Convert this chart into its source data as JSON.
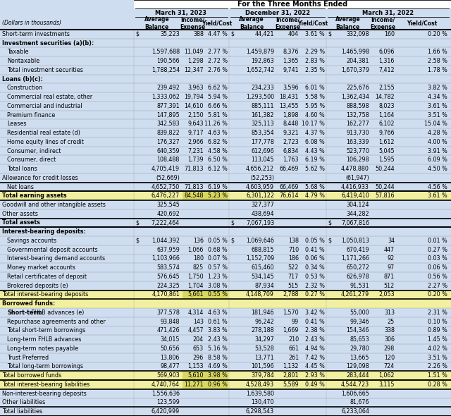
{
  "title": "For the Three Months Ended",
  "rows": [
    {
      "label": "Short-term investments",
      "indent": 0,
      "bold": false,
      "style": "normal",
      "dollar_avg": true,
      "d1": [
        "35,223",
        "388",
        "4.47 %"
      ],
      "d2": [
        "44,421",
        "404",
        "3.61 %"
      ],
      "d3": [
        "332,098",
        "160",
        "0.20 %"
      ]
    },
    {
      "label": "Investment securities (a)(b):",
      "indent": 0,
      "bold": true,
      "style": "section_header",
      "d1": [
        "",
        "",
        ""
      ],
      "d2": [
        "",
        "",
        ""
      ],
      "d3": [
        "",
        "",
        ""
      ]
    },
    {
      "label": "Taxable",
      "indent": 1,
      "bold": false,
      "style": "normal",
      "dollar_avg": false,
      "d1": [
        "1,597,688",
        "11,049",
        "2.77 %"
      ],
      "d2": [
        "1,459,879",
        "8,376",
        "2.29 %"
      ],
      "d3": [
        "1,465,998",
        "6,096",
        "1.66 %"
      ]
    },
    {
      "label": "Nontaxable",
      "indent": 1,
      "bold": false,
      "style": "normal",
      "dollar_avg": false,
      "d1": [
        "190,566",
        "1,298",
        "2.72 %"
      ],
      "d2": [
        "192,863",
        "1,365",
        "2.83 %"
      ],
      "d3": [
        "204,381",
        "1,316",
        "2.58 %"
      ]
    },
    {
      "label": "Total investment securities",
      "indent": 1,
      "bold": false,
      "style": "subtotal",
      "dollar_avg": false,
      "d1": [
        "1,788,254",
        "12,347",
        "2.76 %"
      ],
      "d2": [
        "1,652,742",
        "9,741",
        "2.35 %"
      ],
      "d3": [
        "1,670,379",
        "7,412",
        "1.78 %"
      ]
    },
    {
      "label": "Loans (b)(c):",
      "indent": 0,
      "bold": true,
      "style": "section_header",
      "d1": [
        "",
        "",
        ""
      ],
      "d2": [
        "",
        "",
        ""
      ],
      "d3": [
        "",
        "",
        ""
      ]
    },
    {
      "label": "Construction",
      "indent": 1,
      "bold": false,
      "style": "normal",
      "dollar_avg": false,
      "d1": [
        "239,492",
        "3,963",
        "6.62 %"
      ],
      "d2": [
        "234,233",
        "3,596",
        "6.01 %"
      ],
      "d3": [
        "225,676",
        "2,155",
        "3.82 %"
      ]
    },
    {
      "label": "Commercial real estate, other",
      "indent": 1,
      "bold": false,
      "style": "normal",
      "dollar_avg": false,
      "d1": [
        "1,333,062",
        "19,794",
        "5.94 %"
      ],
      "d2": [
        "1,293,500",
        "18,431",
        "5.58 %"
      ],
      "d3": [
        "1,362,434",
        "14,782",
        "4.34 %"
      ]
    },
    {
      "label": "Commercial and industrial",
      "indent": 1,
      "bold": false,
      "style": "normal",
      "dollar_avg": false,
      "d1": [
        "877,391",
        "14,610",
        "6.66 %"
      ],
      "d2": [
        "885,111",
        "13,455",
        "5.95 %"
      ],
      "d3": [
        "888,598",
        "8,023",
        "3.61 %"
      ]
    },
    {
      "label": "Premium finance",
      "indent": 1,
      "bold": false,
      "style": "normal",
      "dollar_avg": false,
      "d1": [
        "147,895",
        "2,150",
        "5.81 %"
      ],
      "d2": [
        "161,382",
        "1,898",
        "4.60 %"
      ],
      "d3": [
        "132,758",
        "1,164",
        "3.51 %"
      ]
    },
    {
      "label": "Leases",
      "indent": 1,
      "bold": false,
      "style": "normal",
      "dollar_avg": false,
      "d1": [
        "342,583",
        "9,643",
        "11.26 %"
      ],
      "d2": [
        "325,113",
        "8,448",
        "10.17 %"
      ],
      "d3": [
        "162,277",
        "6,102",
        "15.04 %"
      ]
    },
    {
      "label": "Residential real estate (d)",
      "indent": 1,
      "bold": false,
      "style": "normal",
      "dollar_avg": false,
      "d1": [
        "839,822",
        "9,717",
        "4.63 %"
      ],
      "d2": [
        "853,354",
        "9,321",
        "4.37 %"
      ],
      "d3": [
        "913,730",
        "9,766",
        "4.28 %"
      ]
    },
    {
      "label": "Home equity lines of credit",
      "indent": 1,
      "bold": false,
      "style": "normal",
      "dollar_avg": false,
      "d1": [
        "176,327",
        "2,966",
        "6.82 %"
      ],
      "d2": [
        "177,778",
        "2,723",
        "6.08 %"
      ],
      "d3": [
        "163,339",
        "1,612",
        "4.00 %"
      ]
    },
    {
      "label": "Consumer, indirect",
      "indent": 1,
      "bold": false,
      "style": "normal",
      "dollar_avg": false,
      "d1": [
        "640,359",
        "7,231",
        "4.58 %"
      ],
      "d2": [
        "612,696",
        "6,834",
        "4.43 %"
      ],
      "d3": [
        "523,770",
        "5,045",
        "3.91 %"
      ]
    },
    {
      "label": "Consumer, direct",
      "indent": 1,
      "bold": false,
      "style": "normal",
      "dollar_avg": false,
      "d1": [
        "108,488",
        "1,739",
        "6.50 %"
      ],
      "d2": [
        "113,045",
        "1,763",
        "6.19 %"
      ],
      "d3": [
        "106,298",
        "1,595",
        "6.09 %"
      ]
    },
    {
      "label": "Total loans",
      "indent": 1,
      "bold": false,
      "style": "subtotal",
      "dollar_avg": false,
      "d1": [
        "4,705,419",
        "71,813",
        "6.12 %"
      ],
      "d2": [
        "4,656,212",
        "66,469",
        "5.62 %"
      ],
      "d3": [
        "4,478,880",
        "50,244",
        "4.50 %"
      ]
    },
    {
      "label": "Allowance for credit losses",
      "indent": 0,
      "bold": false,
      "style": "normal",
      "dollar_avg": false,
      "d1": [
        "(52,669)",
        "",
        ""
      ],
      "d2": [
        "(52,253)",
        "",
        ""
      ],
      "d3": [
        "(61,947)",
        "",
        ""
      ]
    },
    {
      "label": "Net loans",
      "indent": 1,
      "bold": false,
      "style": "subtotal2",
      "dollar_avg": false,
      "d1": [
        "4,652,750",
        "71,813",
        "6.19 %"
      ],
      "d2": [
        "4,603,959",
        "66,469",
        "5.68 %"
      ],
      "d3": [
        "4,416,933",
        "50,244",
        "4.56 %"
      ]
    },
    {
      "label": "Total earning assets",
      "indent": 0,
      "bold": true,
      "style": "yellow_total",
      "dollar_avg": false,
      "d1": [
        "6,476,227",
        "84,548",
        "5.23 %"
      ],
      "d2": [
        "6,301,122",
        "76,614",
        "4.79 %"
      ],
      "d3": [
        "6,419,410",
        "57,816",
        "3.61 %"
      ]
    },
    {
      "label": "Goodwill and other intangible assets",
      "indent": 0,
      "bold": false,
      "style": "normal",
      "dollar_avg": false,
      "d1": [
        "325,545",
        "",
        ""
      ],
      "d2": [
        "327,377",
        "",
        ""
      ],
      "d3": [
        "304,124",
        "",
        ""
      ]
    },
    {
      "label": "Other assets",
      "indent": 0,
      "bold": false,
      "style": "normal",
      "dollar_avg": false,
      "d1": [
        "420,692",
        "",
        ""
      ],
      "d2": [
        "438,694",
        "",
        ""
      ],
      "d3": [
        "344,282",
        "",
        ""
      ]
    },
    {
      "label": "Total assets",
      "indent": 0,
      "bold": true,
      "style": "bold_total",
      "dollar_avg": true,
      "d1": [
        "7,222,464",
        "",
        ""
      ],
      "d2": [
        "7,067,193",
        "",
        ""
      ],
      "d3": [
        "7,067,816",
        "",
        ""
      ]
    },
    {
      "label": "Interest-bearing deposits:",
      "indent": 0,
      "bold": true,
      "style": "section_header",
      "d1": [
        "",
        "",
        ""
      ],
      "d2": [
        "",
        "",
        ""
      ],
      "d3": [
        "",
        "",
        ""
      ]
    },
    {
      "label": "Savings accounts",
      "indent": 1,
      "bold": false,
      "style": "normal",
      "dollar_avg": true,
      "d1": [
        "1,044,392",
        "136",
        "0.05 %"
      ],
      "d2": [
        "1,069,646",
        "138",
        "0.05 %"
      ],
      "d3": [
        "1,050,813",
        "34",
        "0.01 %"
      ]
    },
    {
      "label": "Governmental deposit accounts",
      "indent": 1,
      "bold": false,
      "style": "normal",
      "dollar_avg": false,
      "d1": [
        "637,959",
        "1,066",
        "0.68 %"
      ],
      "d2": [
        "688,815",
        "710",
        "0.41 %"
      ],
      "d3": [
        "670,419",
        "447",
        "0.27 %"
      ]
    },
    {
      "label": "Interest-bearing demand accounts",
      "indent": 1,
      "bold": false,
      "style": "normal",
      "dollar_avg": false,
      "d1": [
        "1,103,966",
        "180",
        "0.07 %"
      ],
      "d2": [
        "1,152,709",
        "186",
        "0.06 %"
      ],
      "d3": [
        "1,171,266",
        "92",
        "0.03 %"
      ]
    },
    {
      "label": "Money market accounts",
      "indent": 1,
      "bold": false,
      "style": "normal",
      "dollar_avg": false,
      "d1": [
        "583,574",
        "825",
        "0.57 %"
      ],
      "d2": [
        "615,460",
        "522",
        "0.34 %"
      ],
      "d3": [
        "650,272",
        "97",
        "0.06 %"
      ]
    },
    {
      "label": "Retail certificates of deposit",
      "indent": 1,
      "bold": false,
      "style": "normal",
      "dollar_avg": false,
      "d1": [
        "576,645",
        "1,750",
        "1.23 %"
      ],
      "d2": [
        "534,145",
        "717",
        "0.53 %"
      ],
      "d3": [
        "626,978",
        "871",
        "0.56 %"
      ]
    },
    {
      "label": "Brokered deposits (e)",
      "indent": 1,
      "bold": false,
      "style": "normal",
      "dollar_avg": false,
      "d1": [
        "224,325",
        "1,704",
        "3.08 %"
      ],
      "d2": [
        "87,934",
        "515",
        "2.32 %"
      ],
      "d3": [
        "91,531",
        "512",
        "2.27 %"
      ]
    },
    {
      "label": "Total interest-bearing deposits",
      "indent": 0,
      "bold": false,
      "style": "yellow_total",
      "dollar_avg": false,
      "d1": [
        "4,170,861",
        "5,661",
        "0.55 %"
      ],
      "d2": [
        "4,148,709",
        "2,788",
        "0.27 %"
      ],
      "d3": [
        "4,261,279",
        "2,053",
        "0.20 %"
      ]
    },
    {
      "label": "Borrowed funds:",
      "indent": 0,
      "bold": true,
      "style": "yellow_header",
      "d1": [
        "",
        "",
        ""
      ],
      "d2": [
        "",
        "",
        ""
      ],
      "d3": [
        "",
        "",
        ""
      ]
    },
    {
      "label": "Short-term FHLB advances (e)",
      "indent": 1,
      "bold": false,
      "style": "normal",
      "dollar_avg": false,
      "d1": [
        "377,578",
        "4,314",
        "4.63 %"
      ],
      "d2": [
        "181,946",
        "1,570",
        "3.42 %"
      ],
      "d3": [
        "55,000",
        "313",
        "2.31 %"
      ],
      "bold_prefix": "Short-term"
    },
    {
      "label": "Repurchase agreements and other",
      "indent": 1,
      "bold": false,
      "style": "normal",
      "dollar_avg": false,
      "d1": [
        "93,848",
        "143",
        "0.61 %"
      ],
      "d2": [
        "96,242",
        "99",
        "0.41 %"
      ],
      "d3": [
        "99,346",
        "25",
        "0.10 %"
      ]
    },
    {
      "label": "Total short-term borrowings",
      "indent": 1,
      "bold": false,
      "style": "subtotal",
      "dollar_avg": false,
      "d1": [
        "471,426",
        "4,457",
        "3.83 %"
      ],
      "d2": [
        "278,188",
        "1,669",
        "2.38 %"
      ],
      "d3": [
        "154,346",
        "338",
        "0.89 %"
      ]
    },
    {
      "label": "Long-term FHLB advances",
      "indent": 1,
      "bold": false,
      "style": "normal",
      "dollar_avg": false,
      "d1": [
        "34,015",
        "204",
        "2.43 %"
      ],
      "d2": [
        "34,297",
        "210",
        "2.43 %"
      ],
      "d3": [
        "85,653",
        "306",
        "1.45 %"
      ]
    },
    {
      "label": "Long-term notes payable",
      "indent": 1,
      "bold": false,
      "style": "normal",
      "dollar_avg": false,
      "d1": [
        "50,656",
        "653",
        "5.16 %"
      ],
      "d2": [
        "53,528",
        "661",
        "4.94 %"
      ],
      "d3": [
        "29,780",
        "298",
        "4.02 %"
      ]
    },
    {
      "label": "Trust Preferred",
      "indent": 1,
      "bold": false,
      "style": "normal",
      "dollar_avg": false,
      "d1": [
        "13,806",
        "296",
        "8.58 %"
      ],
      "d2": [
        "13,771",
        "261",
        "7.42 %"
      ],
      "d3": [
        "13,665",
        "120",
        "3.51 %"
      ]
    },
    {
      "label": "Total long-term borrowings",
      "indent": 1,
      "bold": false,
      "style": "subtotal",
      "dollar_avg": false,
      "d1": [
        "98,477",
        "1,153",
        "4.69 %"
      ],
      "d2": [
        "101,596",
        "1,132",
        "4.45 %"
      ],
      "d3": [
        "129,098",
        "724",
        "2.26 %"
      ]
    },
    {
      "label": "Total borrowed funds",
      "indent": 0,
      "bold": false,
      "style": "yellow_total",
      "dollar_avg": false,
      "d1": [
        "569,903",
        "5,610",
        "3.98 %"
      ],
      "d2": [
        "379,784",
        "2,801",
        "2.93 %"
      ],
      "d3": [
        "283,444",
        "1,062",
        "1.51 %"
      ]
    },
    {
      "label": "Total interest-bearing liabilities",
      "indent": 0,
      "bold": false,
      "style": "yellow_total",
      "dollar_avg": false,
      "d1": [
        "4,740,764",
        "11,271",
        "0.96 %"
      ],
      "d2": [
        "4,528,493",
        "5,589",
        "0.49 %"
      ],
      "d3": [
        "4,544,723",
        "3,115",
        "0.28 %"
      ]
    },
    {
      "label": "Non-interest-bearing deposits",
      "indent": 0,
      "bold": false,
      "style": "normal",
      "dollar_avg": false,
      "d1": [
        "1,556,636",
        "",
        ""
      ],
      "d2": [
        "1,639,580",
        "",
        ""
      ],
      "d3": [
        "1,606,665",
        "",
        ""
      ]
    },
    {
      "label": "Other liabilities",
      "indent": 0,
      "bold": false,
      "style": "normal",
      "dollar_avg": false,
      "d1": [
        "123,599",
        "",
        ""
      ],
      "d2": [
        "130,470",
        "",
        ""
      ],
      "d3": [
        "81,676",
        "",
        ""
      ]
    },
    {
      "label": "Total liabilities",
      "indent": 0,
      "bold": false,
      "style": "bold_total2",
      "dollar_avg": false,
      "d1": [
        "6,420,999",
        "",
        ""
      ],
      "d2": [
        "6,298,543",
        "",
        ""
      ],
      "d3": [
        "6,233,064",
        "",
        ""
      ]
    }
  ]
}
